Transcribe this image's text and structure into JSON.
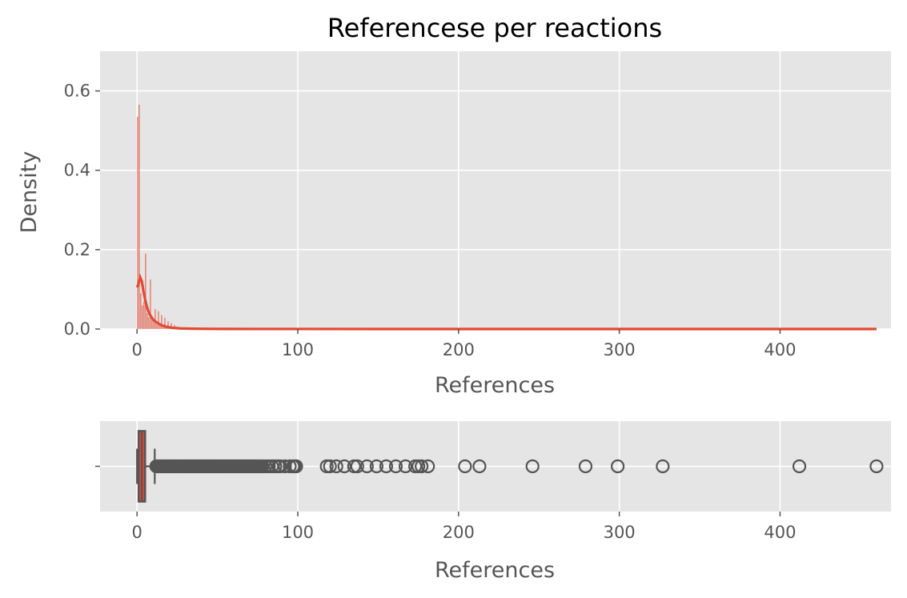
{
  "figure": {
    "title": "Referencese per reactions"
  },
  "chart_data": [
    {
      "type": "histogram",
      "title": "Referencese per reactions",
      "xlabel": "References",
      "ylabel": "Density",
      "xlim": [
        -23,
        469
      ],
      "ylim": [
        0,
        0.7
      ],
      "x_ticks": [
        0,
        100,
        200,
        300,
        400
      ],
      "y_ticks": [
        0.0,
        0.2,
        0.4,
        0.6
      ],
      "x_tick_labels": [
        "0",
        "100",
        "200",
        "300",
        "400"
      ],
      "y_tick_labels": [
        "0.0",
        "0.2",
        "0.4",
        "0.6"
      ],
      "grid": true,
      "bar_color": "#E24A33",
      "bins": [
        {
          "x": 0,
          "density": 0.535
        },
        {
          "x": 1,
          "density": 0.565
        },
        {
          "x": 2,
          "density": 0.09
        },
        {
          "x": 3,
          "density": 0.06
        },
        {
          "x": 4,
          "density": 0.07
        },
        {
          "x": 5,
          "density": 0.19
        },
        {
          "x": 6,
          "density": 0.04
        },
        {
          "x": 7,
          "density": 0.03
        },
        {
          "x": 8,
          "density": 0.125
        },
        {
          "x": 9,
          "density": 0.025
        },
        {
          "x": 10,
          "density": 0.02
        },
        {
          "x": 11,
          "density": 0.05
        },
        {
          "x": 12,
          "density": 0.012
        },
        {
          "x": 13,
          "density": 0.045
        },
        {
          "x": 14,
          "density": 0.01
        },
        {
          "x": 15,
          "density": 0.035
        },
        {
          "x": 16,
          "density": 0.008
        },
        {
          "x": 17,
          "density": 0.028
        },
        {
          "x": 18,
          "density": 0.006
        },
        {
          "x": 19,
          "density": 0.02
        },
        {
          "x": 20,
          "density": 0.005
        },
        {
          "x": 21,
          "density": 0.015
        },
        {
          "x": 22,
          "density": 0.004
        },
        {
          "x": 23,
          "density": 0.01
        },
        {
          "x": 24,
          "density": 0.003
        },
        {
          "x": 25,
          "density": 0.006
        }
      ],
      "kde": {
        "color": "#E24A33",
        "x": [
          0,
          1,
          2,
          3,
          4,
          5,
          6,
          7,
          8,
          10,
          12,
          15,
          18,
          22,
          27,
          35,
          50,
          80,
          150,
          250,
          350,
          460
        ],
        "y": [
          0.105,
          0.115,
          0.13,
          0.12,
          0.095,
          0.075,
          0.058,
          0.045,
          0.036,
          0.024,
          0.017,
          0.01,
          0.006,
          0.003,
          0.0015,
          0.0007,
          0.0003,
          0.0001,
          5e-05,
          3e-05,
          2e-05,
          1e-05
        ]
      }
    },
    {
      "type": "box",
      "xlabel": "References",
      "xlim": [
        -23,
        469
      ],
      "x_ticks": [
        0,
        100,
        200,
        300,
        400
      ],
      "x_tick_labels": [
        "0",
        "100",
        "200",
        "300",
        "400"
      ],
      "grid": true,
      "stats": {
        "whisker_low": 0,
        "q1": 1,
        "median": 3,
        "q3": 5,
        "whisker_high": 11
      },
      "box_fill": "#E24A33",
      "line_color": "#555555",
      "outliers": [
        12,
        13,
        14,
        15,
        16,
        17,
        18,
        19,
        20,
        21,
        22,
        23,
        24,
        25,
        26,
        27,
        28,
        29,
        30,
        31,
        32,
        33,
        34,
        35,
        36,
        37,
        38,
        39,
        40,
        41,
        42,
        43,
        44,
        45,
        46,
        47,
        48,
        49,
        50,
        51,
        52,
        53,
        54,
        55,
        56,
        57,
        58,
        59,
        60,
        61,
        62,
        63,
        64,
        65,
        66,
        67,
        68,
        69,
        70,
        71,
        72,
        73,
        74,
        75,
        76,
        77,
        78,
        80,
        82,
        84,
        86,
        88,
        89,
        92,
        95,
        97,
        98,
        99,
        118,
        120,
        124,
        129,
        135,
        137,
        143,
        149,
        155,
        161,
        167,
        173,
        175,
        177,
        181,
        204,
        213,
        246,
        279,
        299,
        327,
        412,
        460
      ]
    }
  ]
}
